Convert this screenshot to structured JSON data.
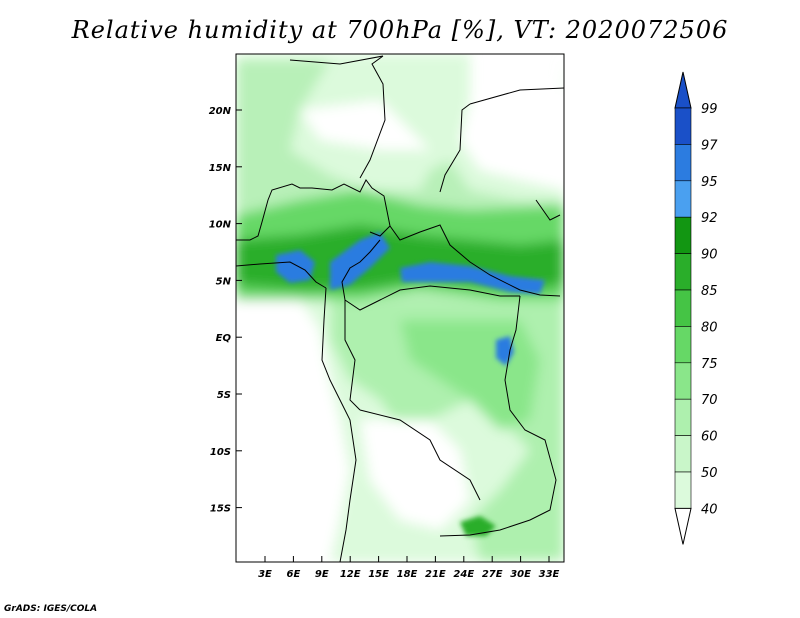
{
  "title": "Relative humidity at 700hPa [%], VT: 2020072506",
  "credit": "GrADS: IGES/COLA",
  "map": {
    "variable": "Relative humidity",
    "level": "700hPa",
    "units": "%",
    "valid_time": "2020072506",
    "lat_ticks": [
      "20N",
      "15N",
      "10N",
      "5N",
      "EQ",
      "5S",
      "10S",
      "15S"
    ],
    "lon_ticks": [
      "3E",
      "6E",
      "9E",
      "12E",
      "15E",
      "18E",
      "21E",
      "24E",
      "27E",
      "30E",
      "33E"
    ]
  },
  "colorbar": {
    "levels": [
      "99",
      "97",
      "95",
      "92",
      "90",
      "85",
      "80",
      "75",
      "70",
      "60",
      "50",
      "40"
    ],
    "colors": [
      "#1a50c8",
      "#2c7ce0",
      "#4aa0f0",
      "#129612",
      "#2aae2a",
      "#45c445",
      "#66d866",
      "#8ae68a",
      "#aef0ae",
      "#c9f6c9",
      "#dcfadc",
      "#f0fdf0"
    ],
    "top_color": "#1a50c8",
    "bottom_color": "#ffffff"
  }
}
